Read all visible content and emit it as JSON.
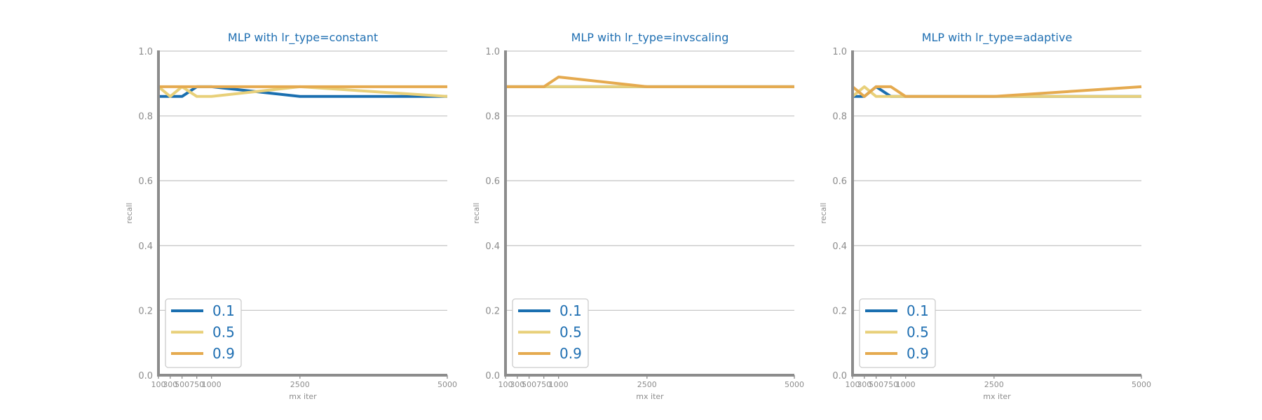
{
  "chart_data": [
    {
      "type": "line",
      "title": "MLP with lr_type=constant",
      "xlabel": "mx iter",
      "ylabel": "recall",
      "ylim": [
        0,
        1
      ],
      "yticks": [
        "0.0",
        "0.2",
        "0.4",
        "0.6",
        "0.8",
        "1.0"
      ],
      "xticks": [
        100,
        300,
        500,
        750,
        1000,
        2500,
        5000
      ],
      "xtick_labels": [
        "100",
        "300",
        "500",
        "750",
        "1000",
        "2500",
        "5000"
      ],
      "x": [
        100,
        300,
        500,
        750,
        1000,
        2500,
        5000
      ],
      "series": [
        {
          "name": "0.1",
          "color": "#1a6fb0",
          "values": [
            0.86,
            0.86,
            0.86,
            0.89,
            0.89,
            0.86,
            0.86
          ]
        },
        {
          "name": "0.5",
          "color": "#e8d07a",
          "values": [
            0.89,
            0.86,
            0.89,
            0.86,
            0.86,
            0.89,
            0.86
          ]
        },
        {
          "name": "0.9",
          "color": "#e5aa4f",
          "values": [
            0.89,
            0.89,
            0.89,
            0.89,
            0.89,
            0.89,
            0.89
          ]
        }
      ],
      "legend": "lower-left",
      "grid": "y"
    },
    {
      "type": "line",
      "title": "MLP with lr_type=invscaling",
      "xlabel": "mx iter",
      "ylabel": "recall",
      "ylim": [
        0,
        1
      ],
      "yticks": [
        "0.0",
        "0.2",
        "0.4",
        "0.6",
        "0.8",
        "1.0"
      ],
      "xticks": [
        100,
        300,
        500,
        750,
        1000,
        2500,
        5000
      ],
      "xtick_labels": [
        "100",
        "300",
        "500",
        "750",
        "1000",
        "2500",
        "5000"
      ],
      "x": [
        100,
        300,
        500,
        750,
        1000,
        2500,
        5000
      ],
      "series": [
        {
          "name": "0.1",
          "color": "#1a6fb0",
          "values": [
            0.89,
            0.89,
            0.89,
            0.89,
            0.89,
            0.89,
            0.89
          ]
        },
        {
          "name": "0.5",
          "color": "#e8d07a",
          "values": [
            0.89,
            0.89,
            0.89,
            0.89,
            0.89,
            0.89,
            0.89
          ]
        },
        {
          "name": "0.9",
          "color": "#e5aa4f",
          "values": [
            0.89,
            0.89,
            0.89,
            0.89,
            0.92,
            0.89,
            0.89
          ]
        }
      ],
      "legend": "lower-left",
      "grid": "y"
    },
    {
      "type": "line",
      "title": "MLP with lr_type=adaptive",
      "xlabel": "mx iter",
      "ylabel": "recall",
      "ylim": [
        0,
        1
      ],
      "yticks": [
        "0.0",
        "0.2",
        "0.4",
        "0.6",
        "0.8",
        "1.0"
      ],
      "xticks": [
        100,
        300,
        500,
        750,
        1000,
        2500,
        5000
      ],
      "xtick_labels": [
        "100",
        "300",
        "500",
        "750",
        "1000",
        "2500",
        "5000"
      ],
      "x": [
        100,
        300,
        500,
        750,
        1000,
        2500,
        5000
      ],
      "series": [
        {
          "name": "0.1",
          "color": "#1a6fb0",
          "values": [
            0.86,
            0.86,
            0.89,
            0.86,
            0.86,
            0.86,
            0.86
          ]
        },
        {
          "name": "0.5",
          "color": "#e8d07a",
          "values": [
            0.86,
            0.89,
            0.86,
            0.86,
            0.86,
            0.86,
            0.86
          ]
        },
        {
          "name": "0.9",
          "color": "#e5aa4f",
          "values": [
            0.89,
            0.86,
            0.89,
            0.89,
            0.86,
            0.86,
            0.89
          ]
        }
      ],
      "legend": "lower-left",
      "grid": "y"
    }
  ]
}
